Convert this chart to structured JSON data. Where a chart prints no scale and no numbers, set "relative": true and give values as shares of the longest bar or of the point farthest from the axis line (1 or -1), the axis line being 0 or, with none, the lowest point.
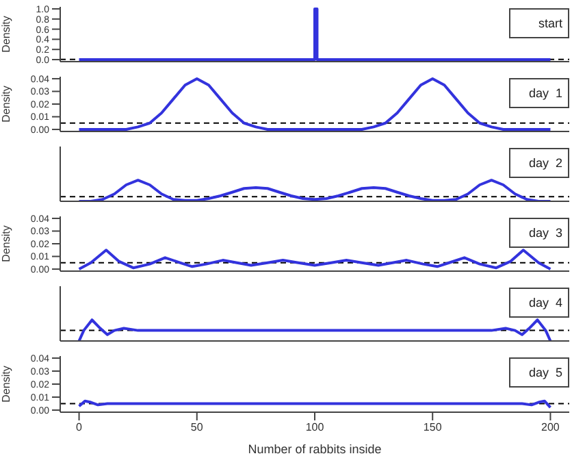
{
  "chart_data": [
    {
      "type": "step",
      "title": "start",
      "ylabel": "Density",
      "xlim": [
        -8,
        208
      ],
      "ylim": [
        -0.04,
        1.04
      ],
      "yticks": [
        {
          "value": 0,
          "label": "0.0"
        },
        {
          "value": 0.2,
          "label": "0.2"
        },
        {
          "value": 0.4,
          "label": "0.4"
        },
        {
          "value": 0.6,
          "label": "0.6"
        },
        {
          "value": 0.8,
          "label": "0.8"
        },
        {
          "value": 1,
          "label": "1.0"
        }
      ],
      "tick_labels": "y",
      "series": [
        {
          "color": "#3333dd",
          "x": [
            0,
            99,
            100,
            101,
            200
          ],
          "values": [
            0,
            0,
            1,
            0,
            0
          ]
        }
      ],
      "ref_lines": [
        {
          "axis": "y",
          "value": 0.005,
          "color": "#000000",
          "line_style": "dashed"
        }
      ]
    },
    {
      "type": "line",
      "title": "day  1",
      "ylabel": "Density",
      "xlim": [
        -8,
        208
      ],
      "ylim": [
        -0.0016,
        0.0416
      ],
      "yticks": [
        {
          "value": 0,
          "label": "0.00"
        },
        {
          "value": 0.01,
          "label": "0.01"
        },
        {
          "value": 0.02,
          "label": "0.02"
        },
        {
          "value": 0.03,
          "label": "0.03"
        },
        {
          "value": 0.04,
          "label": "0.04"
        }
      ],
      "tick_labels": "y",
      "series": [
        {
          "color": "#3333dd",
          "x": [
            0,
            15,
            20,
            25,
            30,
            35,
            40,
            45,
            50,
            55,
            60,
            65,
            70,
            75,
            80,
            85,
            100,
            115,
            120,
            125,
            130,
            135,
            140,
            145,
            150,
            155,
            160,
            165,
            170,
            175,
            180,
            185,
            200
          ],
          "values": [
            0,
            0,
            0,
            0.002,
            0.005,
            0.013,
            0.024,
            0.035,
            0.04,
            0.035,
            0.024,
            0.013,
            0.005,
            0.002,
            0,
            0,
            0,
            0,
            0,
            0.002,
            0.005,
            0.013,
            0.024,
            0.035,
            0.04,
            0.035,
            0.024,
            0.013,
            0.005,
            0.002,
            0,
            0,
            0
          ]
        }
      ],
      "ref_lines": [
        {
          "axis": "y",
          "value": 0.005,
          "color": "#000000",
          "line_style": "dashed"
        }
      ]
    },
    {
      "type": "line",
      "title": "day  2",
      "relative": true,
      "xlim": [
        -8,
        208
      ],
      "tick_labels": false,
      "series": [
        {
          "color": "#3333dd",
          "x": [
            0,
            5,
            10,
            15,
            20,
            25,
            30,
            35,
            40,
            45,
            50,
            55,
            60,
            65,
            70,
            75,
            80,
            85,
            90,
            95,
            100,
            105,
            110,
            115,
            120,
            125,
            130,
            135,
            140,
            145,
            150,
            155,
            160,
            165,
            170,
            175,
            180,
            185,
            190,
            195,
            200
          ],
          "values": [
            0,
            0,
            0.09,
            0.35,
            0.78,
            1,
            0.78,
            0.35,
            0.09,
            0.04,
            0.04,
            0.13,
            0.26,
            0.43,
            0.61,
            0.65,
            0.61,
            0.43,
            0.26,
            0.13,
            0.09,
            0.13,
            0.26,
            0.43,
            0.61,
            0.65,
            0.61,
            0.43,
            0.26,
            0.13,
            0.04,
            0.04,
            0.09,
            0.35,
            0.78,
            1,
            0.78,
            0.35,
            0.09,
            0,
            0
          ]
        }
      ],
      "ref_lines": [
        {
          "axis": "y",
          "value": 0.22,
          "color": "#000000",
          "line_style": "dashed"
        }
      ]
    },
    {
      "type": "line",
      "title": "day  3",
      "ylabel": "Density",
      "xlim": [
        -8,
        208
      ],
      "ylim": [
        -0.0016,
        0.0416
      ],
      "yticks": [
        {
          "value": 0,
          "label": "0.00"
        },
        {
          "value": 0.01,
          "label": "0.01"
        },
        {
          "value": 0.02,
          "label": "0.02"
        },
        {
          "value": 0.03,
          "label": "0.03"
        },
        {
          "value": 0.04,
          "label": "0.04"
        }
      ],
      "tick_labels": "y",
      "series": [
        {
          "color": "#3333dd",
          "x": [
            0,
            5,
            11.5,
            17,
            23,
            30,
            36.5,
            43,
            48,
            54,
            61,
            67,
            73,
            80,
            86.5,
            93,
            100,
            107,
            113.5,
            120,
            127,
            133,
            139,
            146,
            152,
            157,
            163.5,
            170,
            177,
            183,
            188.5,
            195,
            200
          ],
          "values": [
            0,
            0.005,
            0.015,
            0.006,
            0.001,
            0.004,
            0.009,
            0.005,
            0.002,
            0.004,
            0.007,
            0.005,
            0.003,
            0.005,
            0.007,
            0.005,
            0.003,
            0.005,
            0.007,
            0.005,
            0.003,
            0.005,
            0.007,
            0.004,
            0.002,
            0.005,
            0.009,
            0.004,
            0.001,
            0.006,
            0.015,
            0.005,
            0
          ]
        }
      ],
      "ref_lines": [
        {
          "axis": "y",
          "value": 0.005,
          "color": "#000000",
          "line_style": "dashed"
        }
      ]
    },
    {
      "type": "line",
      "title": "day  4",
      "relative": true,
      "xlim": [
        -8,
        208
      ],
      "tick_labels": false,
      "series": [
        {
          "color": "#3333dd",
          "x": [
            0,
            2,
            5.5,
            9,
            12,
            15,
            19,
            25,
            50,
            100,
            150,
            175,
            181,
            185,
            188,
            191,
            194.5,
            198,
            200
          ],
          "values": [
            0,
            0.5,
            1,
            0.6,
            0.3,
            0.5,
            0.6,
            0.5,
            0.5,
            0.5,
            0.5,
            0.5,
            0.6,
            0.5,
            0.3,
            0.6,
            1,
            0.5,
            0
          ]
        }
      ],
      "ref_lines": [
        {
          "axis": "y",
          "value": 0.5,
          "color": "#000000",
          "line_style": "dashed"
        }
      ]
    },
    {
      "type": "line",
      "title": "day  5",
      "ylabel": "Density",
      "xlabel": "Number of rabbits inside",
      "xlim": [
        -8,
        208
      ],
      "ylim": [
        -0.0016,
        0.0416
      ],
      "xticks": [
        0,
        50,
        100,
        150,
        200
      ],
      "yticks": [
        {
          "value": 0,
          "label": "0.00"
        },
        {
          "value": 0.01,
          "label": "0.01"
        },
        {
          "value": 0.02,
          "label": "0.02"
        },
        {
          "value": 0.03,
          "label": "0.03"
        },
        {
          "value": 0.04,
          "label": "0.04"
        }
      ],
      "series": [
        {
          "color": "#3333dd",
          "x": [
            0,
            2.5,
            5,
            8,
            12,
            50,
            100,
            150,
            188,
            192,
            195,
            197.5,
            200
          ],
          "values": [
            0.003,
            0.007,
            0.006,
            0.004,
            0.005,
            0.005,
            0.005,
            0.005,
            0.005,
            0.004,
            0.006,
            0.007,
            0.002
          ]
        }
      ],
      "ref_lines": [
        {
          "axis": "y",
          "value": 0.005,
          "color": "#000000",
          "line_style": "dashed"
        }
      ]
    }
  ]
}
